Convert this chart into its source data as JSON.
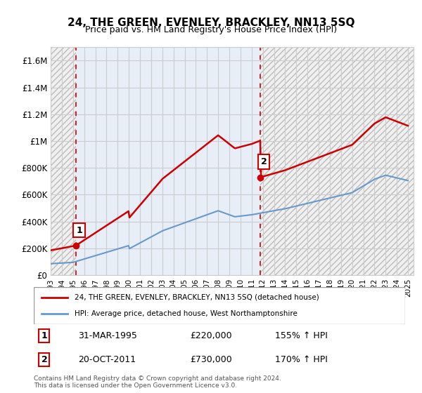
{
  "title": "24, THE GREEN, EVENLEY, BRACKLEY, NN13 5SQ",
  "subtitle": "Price paid vs. HM Land Registry's House Price Index (HPI)",
  "ylim": [
    0,
    1700000
  ],
  "yticks": [
    0,
    200000,
    400000,
    600000,
    800000,
    1000000,
    1200000,
    1400000,
    1600000
  ],
  "ytick_labels": [
    "£0",
    "£200K",
    "£400K",
    "£600K",
    "£800K",
    "£1M",
    "£1.2M",
    "£1.4M",
    "£1.6M"
  ],
  "xlim_start": 1993.0,
  "xlim_end": 2025.5,
  "xticks": [
    1993,
    1994,
    1995,
    1996,
    1997,
    1998,
    1999,
    2000,
    2001,
    2002,
    2003,
    2004,
    2005,
    2006,
    2007,
    2008,
    2009,
    2010,
    2011,
    2012,
    2013,
    2014,
    2015,
    2016,
    2017,
    2018,
    2019,
    2020,
    2021,
    2022,
    2023,
    2024,
    2025
  ],
  "sale1_x": 1995.25,
  "sale1_y": 220000,
  "sale1_label": "1",
  "sale1_date": "31-MAR-1995",
  "sale1_price": "£220,000",
  "sale1_hpi": "155% ↑ HPI",
  "sale2_x": 2011.8,
  "sale2_y": 730000,
  "sale2_label": "2",
  "sale2_date": "20-OCT-2011",
  "sale2_price": "£730,000",
  "sale2_hpi": "170% ↑ HPI",
  "hpi_color": "#6699cc",
  "sale_line_color": "#cc0000",
  "sale_dot_color": "#cc0000",
  "vline_color": "#cc0000",
  "legend_label1": "24, THE GREEN, EVENLEY, BRACKLEY, NN13 5SQ (detached house)",
  "legend_label2": "HPI: Average price, detached house, West Northamptonshire",
  "footer": "Contains HM Land Registry data © Crown copyright and database right 2024.\nThis data is licensed under the Open Government Licence v3.0.",
  "grid_color": "#cccccc",
  "highlight_bg": "#e8eef8"
}
